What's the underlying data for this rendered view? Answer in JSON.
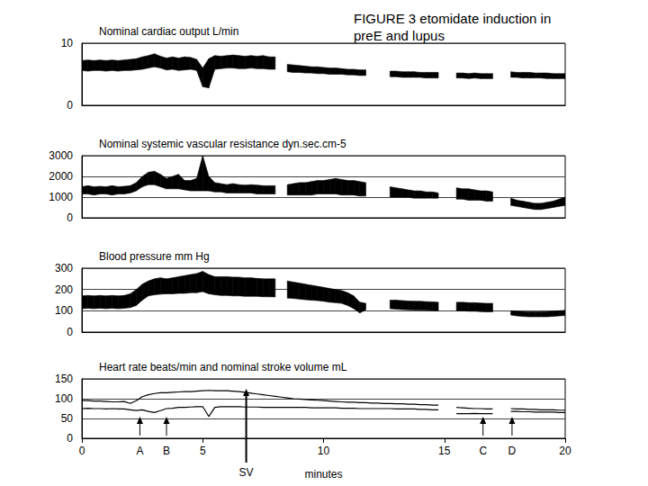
{
  "title": [
    "FIGURE 3 etomidate induction in",
    "preE and lupus"
  ],
  "chart_data": [
    {
      "type": "band",
      "title": "Nominal cardiac output L/min",
      "x": [
        0,
        0.25,
        0.5,
        0.75,
        1,
        1.25,
        1.5,
        1.75,
        2,
        2.25,
        2.5,
        2.75,
        3,
        3.25,
        3.5,
        3.75,
        4,
        4.25,
        4.5,
        4.75,
        5,
        5.25,
        5.5,
        5.75,
        6,
        6.25,
        6.5,
        6.75,
        7,
        7.25,
        7.5,
        7.75,
        8,
        8.25,
        8.5,
        8.75,
        9,
        9.25,
        9.5,
        9.75,
        10,
        10.25,
        10.5,
        10.75,
        11,
        11.25,
        11.5,
        11.75,
        12,
        12.25,
        12.5,
        12.75,
        13,
        13.25,
        13.5,
        13.75,
        14,
        14.25,
        14.5,
        14.75,
        15,
        15.25,
        15.5,
        15.75,
        16,
        16.25,
        16.5,
        16.75,
        17,
        17.25,
        17.5,
        17.75,
        18,
        18.25,
        18.5,
        18.75,
        19,
        19.25,
        19.5,
        19.75,
        20
      ],
      "series": [
        {
          "color": "#000000",
          "low": [
            5.6,
            5.5,
            5.6,
            5.6,
            5.5,
            5.6,
            5.5,
            5.6,
            5.6,
            5.7,
            5.8,
            6.0,
            6.2,
            6.0,
            5.7,
            5.8,
            5.6,
            5.7,
            5.8,
            5.6,
            3.0,
            2.8,
            5.8,
            5.9,
            6.0,
            6.0,
            5.9,
            5.9,
            6.0,
            5.9,
            5.9,
            5.8,
            5.8,
            null,
            5.4,
            5.3,
            5.3,
            5.2,
            5.2,
            5.1,
            5.1,
            5.0,
            5.0,
            5.0,
            4.9,
            4.9,
            4.8,
            4.8,
            null,
            null,
            null,
            4.6,
            4.6,
            4.5,
            4.5,
            4.5,
            4.5,
            4.4,
            4.4,
            4.4,
            null,
            null,
            4.4,
            4.4,
            4.3,
            4.4,
            4.3,
            4.3,
            4.3,
            null,
            null,
            4.5,
            4.5,
            4.4,
            4.4,
            4.4,
            4.4,
            4.3,
            4.3,
            4.3,
            4.3
          ],
          "high": [
            7.2,
            7.3,
            7.2,
            7.3,
            7.2,
            7.3,
            7.2,
            7.3,
            7.4,
            7.5,
            7.8,
            8.0,
            8.3,
            7.9,
            7.6,
            7.8,
            7.6,
            7.8,
            7.7,
            7.4,
            6.0,
            7.5,
            8.0,
            7.9,
            8.0,
            8.1,
            8.0,
            7.9,
            8.0,
            7.9,
            8.0,
            7.8,
            7.8,
            null,
            6.6,
            6.5,
            6.4,
            6.3,
            6.2,
            6.2,
            6.1,
            6.0,
            6.0,
            5.9,
            5.8,
            5.8,
            5.7,
            5.7,
            null,
            null,
            null,
            5.5,
            5.5,
            5.4,
            5.4,
            5.4,
            5.3,
            5.3,
            5.3,
            5.3,
            null,
            null,
            5.2,
            5.2,
            5.1,
            5.2,
            5.1,
            5.1,
            5.1,
            null,
            null,
            5.4,
            5.3,
            5.3,
            5.3,
            5.2,
            5.2,
            5.2,
            5.1,
            5.1,
            5.1
          ]
        }
      ],
      "xlim": [
        0,
        20
      ],
      "ylim": [
        0,
        10
      ],
      "yticks": [
        0,
        10
      ],
      "grid": true,
      "tick_labels": "y"
    },
    {
      "type": "band",
      "title": "Nominal systemic vascular resistance dyn.sec.cm-5",
      "x": [
        0,
        0.25,
        0.5,
        0.75,
        1,
        1.25,
        1.5,
        1.75,
        2,
        2.25,
        2.5,
        2.75,
        3,
        3.25,
        3.5,
        3.75,
        4,
        4.25,
        4.5,
        4.75,
        5,
        5.25,
        5.5,
        5.75,
        6,
        6.25,
        6.5,
        6.75,
        7,
        7.25,
        7.5,
        7.75,
        8,
        8.25,
        8.5,
        8.75,
        9,
        9.25,
        9.5,
        9.75,
        10,
        10.25,
        10.5,
        10.75,
        11,
        11.25,
        11.5,
        11.75,
        12,
        12.25,
        12.5,
        12.75,
        13,
        13.25,
        13.5,
        13.75,
        14,
        14.25,
        14.5,
        14.75,
        15,
        15.25,
        15.5,
        15.75,
        16,
        16.25,
        16.5,
        16.75,
        17,
        17.25,
        17.5,
        17.75,
        18,
        18.25,
        18.5,
        18.75,
        19,
        19.25,
        19.5,
        19.75,
        20
      ],
      "series": [
        {
          "color": "#000000",
          "low": [
            1150,
            1150,
            1100,
            1150,
            1150,
            1100,
            1150,
            1150,
            1200,
            1300,
            1500,
            1600,
            1600,
            1500,
            1400,
            1400,
            1400,
            1350,
            1300,
            1300,
            1300,
            1300,
            1250,
            1250,
            1200,
            1200,
            1200,
            1200,
            1200,
            1150,
            1150,
            1150,
            1150,
            null,
            1100,
            1100,
            1100,
            1100,
            1100,
            1150,
            1150,
            1150,
            1150,
            1100,
            1100,
            1100,
            1050,
            1050,
            null,
            null,
            null,
            1000,
            1000,
            1000,
            1000,
            950,
            950,
            950,
            950,
            950,
            null,
            null,
            900,
            900,
            850,
            850,
            850,
            800,
            800,
            null,
            null,
            600,
            550,
            500,
            450,
            400,
            400,
            450,
            500,
            550,
            600
          ],
          "high": [
            1500,
            1550,
            1500,
            1520,
            1500,
            1550,
            1500,
            1520,
            1550,
            1700,
            2000,
            2200,
            2250,
            2100,
            1900,
            2000,
            2100,
            1800,
            1800,
            1900,
            3000,
            2000,
            1700,
            1650,
            1600,
            1650,
            1600,
            1580,
            1600,
            1580,
            1550,
            1550,
            1550,
            null,
            1600,
            1650,
            1700,
            1700,
            1750,
            1800,
            1800,
            1850,
            1900,
            1850,
            1800,
            1800,
            1750,
            1700,
            null,
            null,
            null,
            1500,
            1450,
            1400,
            1350,
            1300,
            1300,
            1250,
            1250,
            1200,
            null,
            null,
            1450,
            1400,
            1400,
            1350,
            1300,
            1300,
            1250,
            null,
            null,
            950,
            850,
            800,
            750,
            700,
            700,
            750,
            800,
            900,
            1000
          ]
        }
      ],
      "xlim": [
        0,
        20
      ],
      "ylim": [
        0,
        3000
      ],
      "yticks": [
        0,
        1000,
        2000,
        3000
      ],
      "grid": true,
      "tick_labels": "y"
    },
    {
      "type": "band",
      "title": "Blood pressure mm Hg",
      "x": [
        0,
        0.25,
        0.5,
        0.75,
        1,
        1.25,
        1.5,
        1.75,
        2,
        2.25,
        2.5,
        2.75,
        3,
        3.25,
        3.5,
        3.75,
        4,
        4.25,
        4.5,
        4.75,
        5,
        5.25,
        5.5,
        5.75,
        6,
        6.25,
        6.5,
        6.75,
        7,
        7.25,
        7.5,
        7.75,
        8,
        8.25,
        8.5,
        8.75,
        9,
        9.25,
        9.5,
        9.75,
        10,
        10.25,
        10.5,
        10.75,
        11,
        11.25,
        11.5,
        11.75,
        12,
        12.25,
        12.5,
        12.75,
        13,
        13.25,
        13.5,
        13.75,
        14,
        14.25,
        14.5,
        14.75,
        15,
        15.25,
        15.5,
        15.75,
        16,
        16.25,
        16.5,
        16.75,
        17,
        17.25,
        17.5,
        17.75,
        18,
        18.25,
        18.5,
        18.75,
        19,
        19.25,
        19.5,
        19.75,
        20
      ],
      "series": [
        {
          "color": "#000000",
          "low": [
            110,
            112,
            110,
            112,
            110,
            112,
            110,
            112,
            115,
            125,
            150,
            170,
            175,
            178,
            180,
            180,
            182,
            182,
            185,
            185,
            190,
            180,
            175,
            172,
            172,
            170,
            170,
            168,
            168,
            168,
            166,
            166,
            165,
            null,
            160,
            158,
            155,
            152,
            150,
            148,
            145,
            140,
            138,
            135,
            125,
            110,
            90,
            105,
            null,
            null,
            null,
            110,
            108,
            106,
            105,
            104,
            103,
            102,
            101,
            100,
            null,
            null,
            100,
            100,
            98,
            98,
            96,
            95,
            95,
            null,
            null,
            80,
            76,
            74,
            72,
            72,
            72,
            72,
            74,
            76,
            78
          ],
          "high": [
            170,
            172,
            170,
            172,
            170,
            172,
            170,
            172,
            180,
            200,
            225,
            240,
            250,
            255,
            250,
            255,
            260,
            265,
            270,
            275,
            285,
            270,
            260,
            260,
            260,
            258,
            258,
            255,
            255,
            252,
            250,
            250,
            250,
            null,
            240,
            235,
            230,
            225,
            220,
            215,
            210,
            205,
            200,
            195,
            185,
            170,
            140,
            135,
            null,
            null,
            null,
            150,
            150,
            148,
            146,
            145,
            145,
            143,
            142,
            140,
            null,
            null,
            140,
            140,
            138,
            138,
            136,
            135,
            135,
            null,
            null,
            100,
            98,
            96,
            95,
            95,
            95,
            96,
            98,
            100,
            102
          ]
        }
      ],
      "xlim": [
        0,
        20
      ],
      "ylim": [
        0,
        300
      ],
      "yticks": [
        0,
        100,
        200,
        300
      ],
      "grid": true,
      "tick_labels": "y"
    },
    {
      "type": "line",
      "title": "Heart rate beats/min and nominal stroke volume mL",
      "x": [
        0,
        0.25,
        0.5,
        0.75,
        1,
        1.25,
        1.5,
        1.75,
        2,
        2.25,
        2.5,
        2.75,
        3,
        3.25,
        3.5,
        3.75,
        4,
        4.25,
        4.5,
        4.75,
        5,
        5.25,
        5.5,
        5.75,
        6,
        6.25,
        6.5,
        6.75,
        7,
        7.25,
        7.5,
        7.75,
        8,
        8.25,
        8.5,
        8.75,
        9,
        9.25,
        9.5,
        9.75,
        10,
        10.25,
        10.5,
        10.75,
        11,
        11.25,
        11.5,
        11.75,
        12,
        12.25,
        12.5,
        12.75,
        13,
        13.25,
        13.5,
        13.75,
        14,
        14.25,
        14.5,
        14.75,
        15,
        15.25,
        15.5,
        15.75,
        16,
        16.25,
        16.5,
        16.75,
        17,
        17.25,
        17.5,
        17.75,
        18,
        18.25,
        18.5,
        18.75,
        19,
        19.25,
        19.5,
        19.75,
        20
      ],
      "series": [
        {
          "color": "#000000",
          "values": [
            95,
            95,
            94,
            94,
            93,
            92,
            92,
            93,
            88,
            95,
            105,
            110,
            113,
            115,
            115,
            116,
            117,
            118,
            118,
            119,
            120,
            121,
            120,
            120,
            120,
            119,
            118,
            116,
            114,
            112,
            110,
            108,
            106,
            104,
            102,
            100,
            99,
            98,
            97,
            96,
            95,
            94,
            93,
            92,
            91,
            91,
            90,
            90,
            89,
            89,
            88,
            88,
            87,
            87,
            86,
            86,
            85,
            85,
            84,
            84,
            null,
            null,
            78,
            77,
            76,
            75,
            75,
            74,
            74,
            null,
            null,
            75,
            74,
            74,
            73,
            73,
            72,
            72,
            72,
            71,
            71
          ]
        },
        {
          "color": "#000000",
          "values": [
            75,
            76,
            75,
            75,
            74,
            75,
            74,
            74,
            72,
            70,
            72,
            68,
            65,
            70,
            75,
            76,
            78,
            78,
            79,
            80,
            80,
            55,
            78,
            80,
            80,
            80,
            80,
            79,
            79,
            79,
            78,
            78,
            78,
            78,
            78,
            78,
            78,
            78,
            77,
            77,
            77,
            77,
            77,
            76,
            76,
            76,
            75,
            75,
            75,
            75,
            75,
            75,
            74,
            74,
            74,
            74,
            73,
            73,
            72,
            72,
            null,
            null,
            62,
            62,
            62,
            63,
            62,
            62,
            62,
            null,
            null,
            68,
            68,
            67,
            67,
            66,
            66,
            66,
            66,
            65,
            65
          ]
        }
      ],
      "xlim": [
        0,
        20
      ],
      "xticks": [
        0,
        5,
        10,
        15,
        20
      ],
      "xlabel": "minutes",
      "ylim": [
        0,
        150
      ],
      "yticks": [
        0,
        50,
        100,
        150
      ],
      "grid": true,
      "annotations": [
        {
          "text": "A",
          "x": 2.4,
          "marker": "arrow"
        },
        {
          "text": "B",
          "x": 3.5,
          "marker": "arrow"
        },
        {
          "text": "SV",
          "x": 6.8,
          "marker": "long arrow"
        },
        {
          "text": "C",
          "x": 16.6,
          "marker": "arrow"
        },
        {
          "text": "D",
          "x": 17.8,
          "marker": "arrow"
        }
      ]
    }
  ]
}
